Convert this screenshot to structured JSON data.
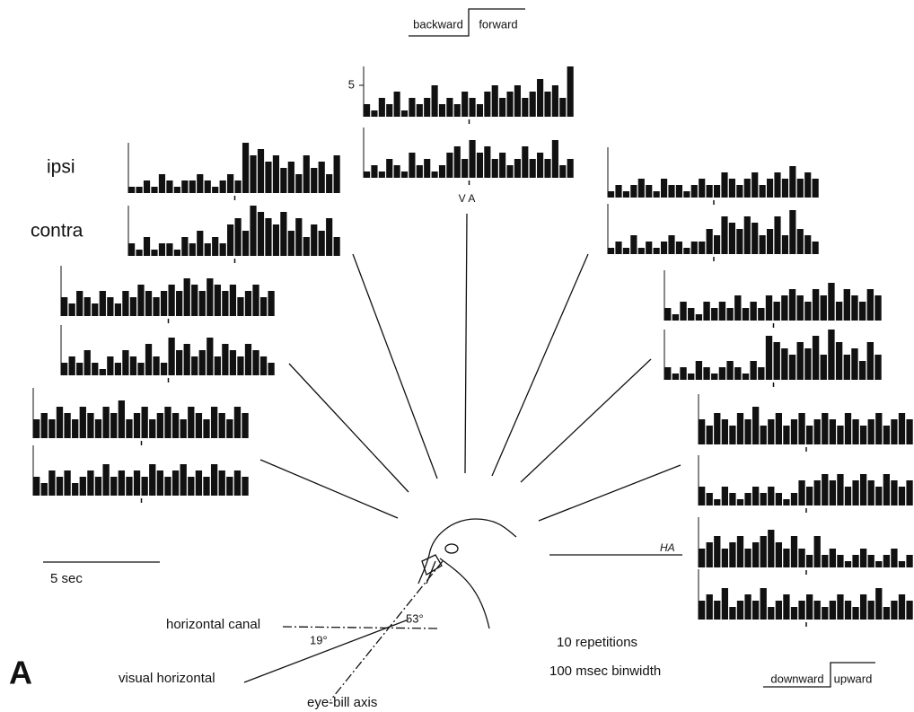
{
  "labels": {
    "backward": "backward",
    "forward": "forward",
    "va": "V A",
    "ipsi": "ipsi",
    "contra": "contra",
    "ha": "HA",
    "time_bar": "5 sec",
    "horizontal_canal": "horizontal canal",
    "angle_small": "19°",
    "angle_large": "53°",
    "visual_horizontal": "visual horizontal",
    "eye_bill_axis": "eye-bill axis",
    "repetitions": "10 repetitions",
    "binwidth": "100 msec binwidth",
    "downward": "downward",
    "upward": "upward",
    "panel": "A"
  },
  "scale": {
    "ytick": 5
  },
  "histograms": [
    {
      "counts": [
        2,
        1,
        3,
        2,
        4,
        1,
        3,
        2,
        3,
        5,
        2,
        3,
        2,
        4,
        3,
        2,
        4,
        5,
        3,
        4,
        5,
        3,
        4,
        6,
        4,
        5,
        3,
        8
      ]
    },
    {
      "counts": [
        1,
        2,
        1,
        3,
        2,
        1,
        4,
        2,
        3,
        1,
        2,
        4,
        5,
        3,
        6,
        4,
        5,
        3,
        4,
        2,
        3,
        5,
        3,
        4,
        3,
        6,
        2,
        3
      ]
    },
    {
      "counts": [
        1,
        1,
        2,
        1,
        3,
        2,
        1,
        2,
        2,
        3,
        2,
        1,
        2,
        3,
        2,
        8,
        6,
        7,
        5,
        6,
        4,
        5,
        3,
        6,
        4,
        5,
        3,
        6
      ]
    },
    {
      "counts": [
        2,
        1,
        3,
        1,
        2,
        2,
        1,
        3,
        2,
        4,
        2,
        3,
        2,
        5,
        6,
        4,
        8,
        7,
        6,
        5,
        7,
        4,
        6,
        3,
        5,
        4,
        6,
        3
      ]
    },
    {
      "counts": [
        3,
        2,
        4,
        3,
        2,
        4,
        3,
        2,
        4,
        3,
        5,
        4,
        3,
        4,
        5,
        4,
        6,
        5,
        4,
        6,
        5,
        4,
        5,
        3,
        4,
        5,
        3,
        4
      ]
    },
    {
      "counts": [
        2,
        3,
        2,
        4,
        2,
        1,
        3,
        2,
        4,
        3,
        2,
        5,
        3,
        2,
        6,
        4,
        5,
        3,
        4,
        6,
        3,
        5,
        4,
        3,
        5,
        4,
        3,
        2
      ]
    },
    {
      "counts": [
        3,
        4,
        3,
        5,
        4,
        3,
        5,
        4,
        3,
        5,
        4,
        6,
        3,
        4,
        5,
        3,
        4,
        5,
        4,
        3,
        5,
        4,
        3,
        5,
        4,
        3,
        5,
        4
      ]
    },
    {
      "counts": [
        3,
        2,
        4,
        3,
        4,
        2,
        3,
        4,
        3,
        5,
        3,
        4,
        3,
        4,
        3,
        5,
        4,
        3,
        4,
        5,
        3,
        4,
        3,
        5,
        4,
        3,
        4,
        3
      ]
    },
    {
      "counts": [
        1,
        2,
        1,
        2,
        3,
        2,
        1,
        3,
        2,
        2,
        1,
        2,
        3,
        2,
        2,
        4,
        3,
        2,
        3,
        4,
        2,
        3,
        4,
        3,
        5,
        3,
        4,
        3
      ]
    },
    {
      "counts": [
        1,
        2,
        1,
        3,
        1,
        2,
        1,
        2,
        3,
        2,
        1,
        2,
        2,
        4,
        3,
        6,
        5,
        4,
        6,
        5,
        3,
        4,
        6,
        3,
        7,
        4,
        3,
        2
      ]
    },
    {
      "counts": [
        2,
        1,
        3,
        2,
        1,
        3,
        2,
        3,
        2,
        4,
        2,
        3,
        2,
        4,
        3,
        4,
        5,
        4,
        3,
        5,
        4,
        6,
        3,
        5,
        4,
        3,
        5,
        4
      ]
    },
    {
      "counts": [
        2,
        1,
        2,
        1,
        3,
        2,
        1,
        2,
        3,
        2,
        1,
        3,
        2,
        7,
        6,
        5,
        4,
        6,
        5,
        7,
        4,
        8,
        6,
        4,
        5,
        3,
        6,
        4
      ]
    },
    {
      "counts": [
        4,
        3,
        5,
        4,
        3,
        5,
        4,
        6,
        3,
        4,
        5,
        3,
        4,
        5,
        3,
        4,
        5,
        4,
        3,
        5,
        4,
        3,
        4,
        5,
        3,
        4,
        5,
        4
      ]
    },
    {
      "counts": [
        3,
        2,
        1,
        3,
        2,
        1,
        2,
        3,
        2,
        3,
        2,
        1,
        2,
        4,
        3,
        4,
        5,
        4,
        5,
        3,
        4,
        5,
        4,
        3,
        5,
        4,
        3,
        4
      ]
    },
    {
      "counts": [
        3,
        4,
        5,
        3,
        4,
        5,
        3,
        4,
        5,
        6,
        4,
        3,
        5,
        3,
        2,
        5,
        2,
        3,
        2,
        1,
        2,
        3,
        2,
        1,
        2,
        3,
        1,
        2
      ]
    },
    {
      "counts": [
        3,
        4,
        3,
        5,
        2,
        3,
        4,
        3,
        5,
        2,
        3,
        4,
        2,
        3,
        4,
        3,
        2,
        3,
        4,
        3,
        2,
        4,
        3,
        5,
        2,
        3,
        4,
        3
      ]
    }
  ]
}
